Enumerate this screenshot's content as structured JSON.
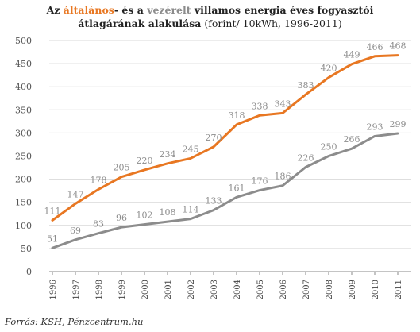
{
  "title": {
    "part1": "Az ",
    "hl1": "általános",
    "part2": "- és a ",
    "hl2": "vezérelt",
    "part3": " villamos energia éves fogyasztói",
    "line2_bold": "átlagárának alakulása",
    "line2_rest": " (forint/ 10kWh, 1996-2011)"
  },
  "source": "Forrás: KSH, Pénzcentrum.hu",
  "colors": {
    "altalanos": "#E87722",
    "vezerelt": "#8C8C8C",
    "grid": "#D9D9D9",
    "axis": "#888888"
  },
  "chart_data": {
    "type": "line",
    "x": [
      "1996",
      "1997",
      "1998",
      "1999",
      "2000",
      "2001",
      "2002",
      "2003",
      "2004",
      "2005",
      "2006",
      "2007",
      "2008",
      "2009",
      "2010",
      "2011"
    ],
    "ylim": [
      0,
      500
    ],
    "yticks": [
      "0",
      "50",
      "100",
      "150",
      "200",
      "250",
      "300",
      "350",
      "400",
      "450",
      "500"
    ],
    "grid": true,
    "series": [
      {
        "name": "általános",
        "values": [
          111,
          147,
          178,
          205,
          220,
          234,
          245,
          270,
          318,
          338,
          343,
          383,
          420,
          449,
          466,
          468
        ],
        "labels": [
          "111",
          "147",
          "178",
          "205",
          "220",
          "234",
          "245",
          "270",
          "318",
          "338",
          "343",
          "383",
          "420",
          "449",
          "466",
          "468"
        ]
      },
      {
        "name": "vezérelt",
        "values": [
          51,
          69,
          83,
          96,
          102,
          108,
          114,
          133,
          161,
          176,
          186,
          226,
          250,
          266,
          293,
          299
        ],
        "labels": [
          "51",
          "69",
          "83",
          "96",
          "102",
          "108",
          "114",
          "133",
          "161",
          "176",
          "186",
          "226",
          "250",
          "266",
          "293",
          "299"
        ]
      }
    ]
  }
}
